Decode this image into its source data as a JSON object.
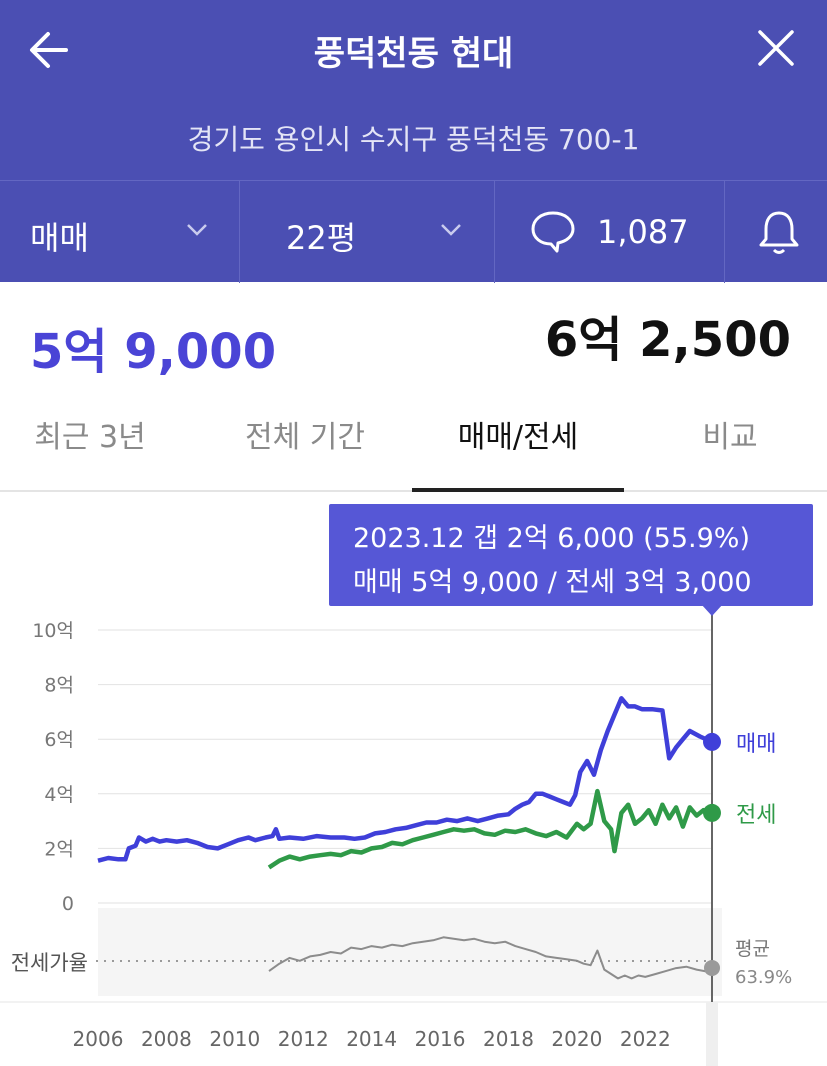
{
  "header": {
    "title": "풍덕천동 현대",
    "address": "경기도 용인시 수지구 풍덕천동 700-1"
  },
  "filters": {
    "deal_type": "매매",
    "area": "22평",
    "comment_count": "1,087"
  },
  "prices": {
    "current": "5억 9,000",
    "high": "6억 2,500"
  },
  "tabs": [
    {
      "label": "최근 3년"
    },
    {
      "label": "전체 기간"
    },
    {
      "label": "매매/전세"
    },
    {
      "label": "비교"
    }
  ],
  "tooltip": {
    "line1": "2023.12  갭 2억 6,000 (55.9%)",
    "line2": "매매 5억 9,000 / 전세 3억 3,000"
  },
  "colors": {
    "header_bg": "#4b4fb3",
    "sale": "#3f3fd9",
    "jeonse": "#2f9a48",
    "ratio": "#8c8c8c",
    "tooltip_bg": "#5657d6"
  },
  "chart_data": {
    "type": "line",
    "ylim": [
      0,
      10
    ],
    "y_ticks": [
      {
        "v": 10,
        "label": "10억"
      },
      {
        "v": 8,
        "label": "8억"
      },
      {
        "v": 6,
        "label": "6억"
      },
      {
        "v": 4,
        "label": "4억"
      },
      {
        "v": 2,
        "label": "2억"
      },
      {
        "v": 0,
        "label": "0"
      }
    ],
    "xlim": [
      2006,
      2023.95
    ],
    "x_ticks": [
      "2006",
      "2008",
      "2010",
      "2012",
      "2014",
      "2016",
      "2018",
      "2020",
      "2022"
    ],
    "series": [
      {
        "name": "매매",
        "points": [
          [
            2006.0,
            1.55
          ],
          [
            2006.3,
            1.65
          ],
          [
            2006.6,
            1.6
          ],
          [
            2006.8,
            1.6
          ],
          [
            2006.9,
            2.0
          ],
          [
            2007.1,
            2.1
          ],
          [
            2007.2,
            2.4
          ],
          [
            2007.4,
            2.25
          ],
          [
            2007.6,
            2.35
          ],
          [
            2007.8,
            2.25
          ],
          [
            2008.0,
            2.3
          ],
          [
            2008.3,
            2.25
          ],
          [
            2008.6,
            2.3
          ],
          [
            2008.9,
            2.2
          ],
          [
            2009.2,
            2.05
          ],
          [
            2009.5,
            2.0
          ],
          [
            2009.8,
            2.15
          ],
          [
            2010.1,
            2.3
          ],
          [
            2010.4,
            2.4
          ],
          [
            2010.6,
            2.3
          ],
          [
            2010.9,
            2.4
          ],
          [
            2011.1,
            2.45
          ],
          [
            2011.2,
            2.7
          ],
          [
            2011.3,
            2.35
          ],
          [
            2011.6,
            2.4
          ],
          [
            2012.0,
            2.35
          ],
          [
            2012.4,
            2.45
          ],
          [
            2012.8,
            2.4
          ],
          [
            2013.2,
            2.4
          ],
          [
            2013.5,
            2.35
          ],
          [
            2013.8,
            2.4
          ],
          [
            2014.1,
            2.55
          ],
          [
            2014.4,
            2.6
          ],
          [
            2014.7,
            2.7
          ],
          [
            2015.0,
            2.75
          ],
          [
            2015.3,
            2.85
          ],
          [
            2015.6,
            2.95
          ],
          [
            2015.9,
            2.95
          ],
          [
            2016.2,
            3.05
          ],
          [
            2016.5,
            3.0
          ],
          [
            2016.8,
            3.1
          ],
          [
            2017.1,
            3.0
          ],
          [
            2017.4,
            3.1
          ],
          [
            2017.7,
            3.2
          ],
          [
            2018.0,
            3.25
          ],
          [
            2018.2,
            3.45
          ],
          [
            2018.4,
            3.6
          ],
          [
            2018.6,
            3.7
          ],
          [
            2018.8,
            4.0
          ],
          [
            2019.0,
            4.0
          ],
          [
            2019.2,
            3.9
          ],
          [
            2019.4,
            3.8
          ],
          [
            2019.6,
            3.7
          ],
          [
            2019.8,
            3.6
          ],
          [
            2019.95,
            3.95
          ],
          [
            2020.1,
            4.8
          ],
          [
            2020.3,
            5.2
          ],
          [
            2020.5,
            4.7
          ],
          [
            2020.7,
            5.6
          ],
          [
            2020.9,
            6.3
          ],
          [
            2021.1,
            6.9
          ],
          [
            2021.3,
            7.5
          ],
          [
            2021.5,
            7.2
          ],
          [
            2021.7,
            7.2
          ],
          [
            2021.9,
            7.1
          ],
          [
            2022.2,
            7.1
          ],
          [
            2022.5,
            7.05
          ],
          [
            2022.7,
            5.3
          ],
          [
            2022.9,
            5.7
          ],
          [
            2023.1,
            6.0
          ],
          [
            2023.3,
            6.3
          ],
          [
            2023.6,
            6.1
          ],
          [
            2023.95,
            5.9
          ]
        ]
      },
      {
        "name": "전세",
        "points": [
          [
            2011.0,
            1.3
          ],
          [
            2011.3,
            1.55
          ],
          [
            2011.6,
            1.7
          ],
          [
            2011.9,
            1.6
          ],
          [
            2012.2,
            1.7
          ],
          [
            2012.5,
            1.75
          ],
          [
            2012.8,
            1.8
          ],
          [
            2013.1,
            1.75
          ],
          [
            2013.4,
            1.9
          ],
          [
            2013.7,
            1.85
          ],
          [
            2014.0,
            2.0
          ],
          [
            2014.3,
            2.05
          ],
          [
            2014.6,
            2.2
          ],
          [
            2014.9,
            2.15
          ],
          [
            2015.2,
            2.3
          ],
          [
            2015.5,
            2.4
          ],
          [
            2015.8,
            2.5
          ],
          [
            2016.1,
            2.6
          ],
          [
            2016.4,
            2.7
          ],
          [
            2016.7,
            2.65
          ],
          [
            2017.0,
            2.7
          ],
          [
            2017.3,
            2.55
          ],
          [
            2017.6,
            2.5
          ],
          [
            2017.9,
            2.65
          ],
          [
            2018.2,
            2.6
          ],
          [
            2018.5,
            2.7
          ],
          [
            2018.8,
            2.55
          ],
          [
            2019.1,
            2.45
          ],
          [
            2019.4,
            2.6
          ],
          [
            2019.7,
            2.4
          ],
          [
            2020.0,
            2.9
          ],
          [
            2020.2,
            2.7
          ],
          [
            2020.4,
            2.9
          ],
          [
            2020.6,
            4.1
          ],
          [
            2020.8,
            3.0
          ],
          [
            2021.0,
            2.7
          ],
          [
            2021.1,
            1.9
          ],
          [
            2021.3,
            3.3
          ],
          [
            2021.5,
            3.6
          ],
          [
            2021.7,
            2.9
          ],
          [
            2021.9,
            3.1
          ],
          [
            2022.1,
            3.4
          ],
          [
            2022.3,
            2.9
          ],
          [
            2022.5,
            3.6
          ],
          [
            2022.7,
            3.1
          ],
          [
            2022.9,
            3.5
          ],
          [
            2023.1,
            2.8
          ],
          [
            2023.3,
            3.5
          ],
          [
            2023.5,
            3.2
          ],
          [
            2023.7,
            3.4
          ],
          [
            2023.95,
            3.3
          ]
        ]
      },
      {
        "name": "전세가율",
        "unit": "%",
        "points": [
          [
            2011.0,
            57
          ],
          [
            2011.3,
            62
          ],
          [
            2011.6,
            66
          ],
          [
            2011.9,
            64
          ],
          [
            2012.2,
            67
          ],
          [
            2012.5,
            68
          ],
          [
            2012.8,
            70
          ],
          [
            2013.1,
            69
          ],
          [
            2013.4,
            73
          ],
          [
            2013.7,
            72
          ],
          [
            2014.0,
            74
          ],
          [
            2014.3,
            73
          ],
          [
            2014.6,
            75
          ],
          [
            2014.9,
            74
          ],
          [
            2015.2,
            76
          ],
          [
            2015.5,
            77
          ],
          [
            2015.8,
            78
          ],
          [
            2016.1,
            80
          ],
          [
            2016.4,
            79
          ],
          [
            2016.7,
            78
          ],
          [
            2017.0,
            79
          ],
          [
            2017.3,
            77
          ],
          [
            2017.6,
            76
          ],
          [
            2017.9,
            77
          ],
          [
            2018.2,
            74
          ],
          [
            2018.5,
            72
          ],
          [
            2018.8,
            70
          ],
          [
            2019.1,
            67
          ],
          [
            2019.4,
            66
          ],
          [
            2019.7,
            65
          ],
          [
            2020.0,
            64
          ],
          [
            2020.2,
            62
          ],
          [
            2020.4,
            61
          ],
          [
            2020.6,
            71
          ],
          [
            2020.8,
            58
          ],
          [
            2021.0,
            55
          ],
          [
            2021.2,
            52
          ],
          [
            2021.4,
            54
          ],
          [
            2021.6,
            52
          ],
          [
            2021.8,
            54
          ],
          [
            2022.0,
            53
          ],
          [
            2022.3,
            55
          ],
          [
            2022.6,
            57
          ],
          [
            2022.9,
            59
          ],
          [
            2023.2,
            60
          ],
          [
            2023.5,
            58
          ],
          [
            2023.95,
            56
          ]
        ]
      }
    ],
    "ratio_range": [
      40,
      100
    ],
    "ratio_label": "전세가율",
    "ratio_avg_label": "평균",
    "ratio_avg_value": "63.9%",
    "ratio_avg": 63.9,
    "highlight_x": 2023.95,
    "highlight_values": {
      "매매": 5.9,
      "전세": 3.3,
      "전세가율": 56
    }
  }
}
